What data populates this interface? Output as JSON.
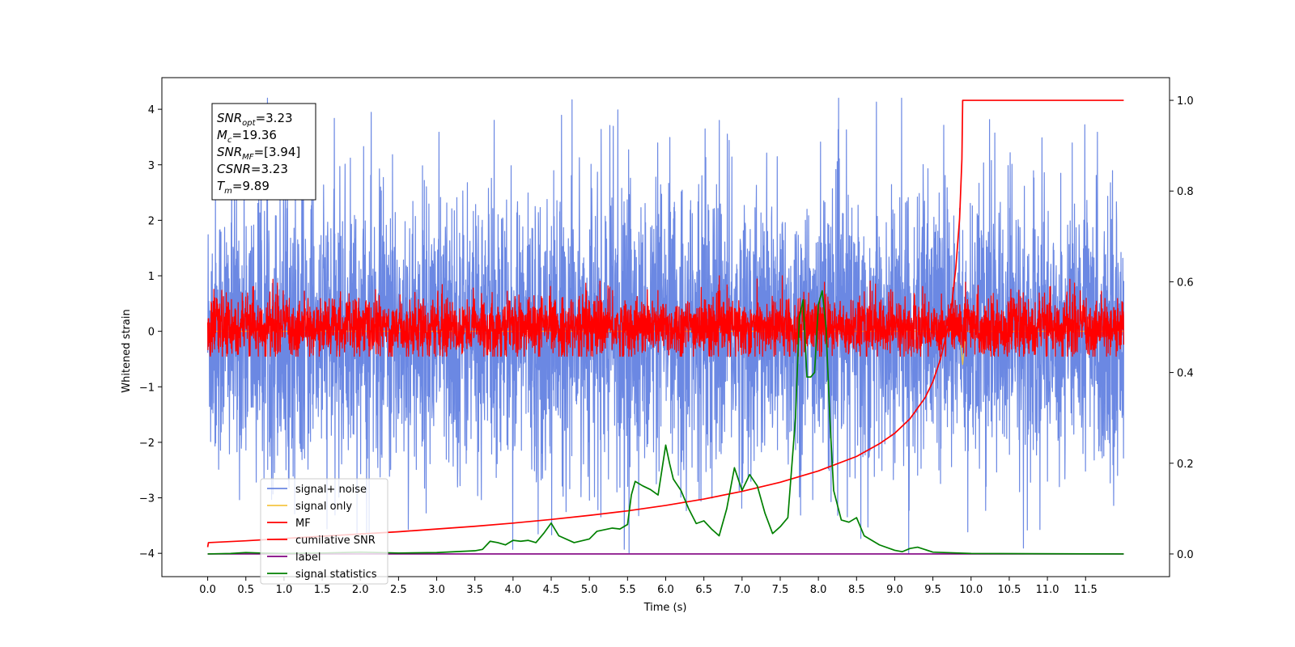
{
  "chart_data": {
    "type": "line",
    "xlabel": "Time (s)",
    "ylabel": "Whitened strain",
    "xlim": [
      -0.6,
      12.6
    ],
    "ylim": [
      -4.42,
      4.57
    ],
    "y2lim": [
      -0.05,
      1.05
    ],
    "x_ticks": [
      0.0,
      0.5,
      1.0,
      1.5,
      2.0,
      2.5,
      3.0,
      3.5,
      4.0,
      4.5,
      5.0,
      5.5,
      6.0,
      6.5,
      7.0,
      7.5,
      8.0,
      8.5,
      9.0,
      9.5,
      10.0,
      10.5,
      11.0,
      11.5
    ],
    "y_ticks": [
      -4,
      -3,
      -2,
      -1,
      0,
      1,
      2,
      3,
      4
    ],
    "y2_ticks": [
      0.0,
      0.2,
      0.4,
      0.6,
      0.8,
      1.0
    ],
    "legend_placement": "lower-left",
    "annotation": {
      "lines": [
        {
          "main": "SNR",
          "sub": "opt",
          "rest": "=3.23"
        },
        {
          "main": "M",
          "sub": "c",
          "rest": "=19.36"
        },
        {
          "main": "SNR",
          "sub": "MF",
          "rest": "=[3.94]"
        },
        {
          "main": "CSNR",
          "sub": "",
          "rest": "=3.23"
        },
        {
          "main": "T",
          "sub": "m",
          "rest": "=9.89"
        }
      ]
    },
    "series": [
      {
        "name": "signal+ noise",
        "color": "#6b88e3",
        "axis": "left",
        "kind": "noise",
        "x_range": [
          0.0,
          12.0
        ],
        "mean": 0.0,
        "envelope": [
          -2.5,
          2.5
        ],
        "extremes": [
          -4.0,
          4.2
        ]
      },
      {
        "name": "signal only",
        "color": "#f5c542",
        "axis": "left",
        "kind": "line",
        "x": [
          0.0,
          9.85,
          9.89,
          9.93,
          12.0
        ],
        "y": [
          0.0,
          0.0,
          -0.6,
          0.0,
          0.0
        ]
      },
      {
        "name": "MF",
        "color": "#ff0000",
        "axis": "left",
        "kind": "noise",
        "x_range": [
          0.0,
          12.0
        ],
        "mean": 0.0,
        "envelope": [
          -0.45,
          0.6
        ],
        "extremes": [
          -0.45,
          1.0
        ]
      },
      {
        "name": "cumilative SNR",
        "color": "#ff0000",
        "axis": "right",
        "kind": "line",
        "x": [
          0.0,
          0.01,
          0.5,
          1.0,
          1.5,
          2.0,
          2.5,
          3.0,
          3.5,
          4.0,
          4.5,
          5.0,
          5.5,
          6.0,
          6.5,
          7.0,
          7.5,
          8.0,
          8.5,
          8.8,
          9.0,
          9.2,
          9.4,
          9.5,
          9.6,
          9.7,
          9.75,
          9.8,
          9.85,
          9.88,
          9.89,
          12.0
        ],
        "y": [
          0.015,
          0.025,
          0.029,
          0.034,
          0.039,
          0.044,
          0.049,
          0.055,
          0.061,
          0.068,
          0.076,
          0.085,
          0.095,
          0.107,
          0.121,
          0.138,
          0.158,
          0.183,
          0.215,
          0.243,
          0.266,
          0.298,
          0.345,
          0.38,
          0.43,
          0.5,
          0.555,
          0.63,
          0.74,
          0.87,
          1.0,
          1.0
        ]
      },
      {
        "name": "label",
        "color": "#800080",
        "axis": "right",
        "kind": "line",
        "x": [
          0.0,
          12.0
        ],
        "y": [
          0.0,
          0.0
        ]
      },
      {
        "name": "signal statistics",
        "color": "#008000",
        "axis": "right",
        "kind": "line",
        "x": [
          0.0,
          0.3,
          0.5,
          0.7,
          1.0,
          1.5,
          2.0,
          2.5,
          3.0,
          3.5,
          3.6,
          3.7,
          3.8,
          3.9,
          4.0,
          4.1,
          4.2,
          4.3,
          4.4,
          4.5,
          4.6,
          4.8,
          5.0,
          5.1,
          5.3,
          5.4,
          5.5,
          5.55,
          5.6,
          5.7,
          5.8,
          5.9,
          6.0,
          6.05,
          6.1,
          6.2,
          6.3,
          6.4,
          6.5,
          6.6,
          6.7,
          6.8,
          6.9,
          7.0,
          7.1,
          7.2,
          7.3,
          7.4,
          7.5,
          7.6,
          7.7,
          7.75,
          7.8,
          7.85,
          7.9,
          7.95,
          8.0,
          8.05,
          8.1,
          8.15,
          8.2,
          8.3,
          8.4,
          8.5,
          8.6,
          8.7,
          8.8,
          9.0,
          9.1,
          9.2,
          9.3,
          9.5,
          10.0,
          12.0
        ],
        "y": [
          0.0,
          0.001,
          0.003,
          0.002,
          0.001,
          0.002,
          0.004,
          0.002,
          0.003,
          0.007,
          0.01,
          0.028,
          0.025,
          0.02,
          0.03,
          0.028,
          0.03,
          0.025,
          0.045,
          0.068,
          0.04,
          0.025,
          0.033,
          0.05,
          0.057,
          0.055,
          0.065,
          0.13,
          0.16,
          0.15,
          0.142,
          0.13,
          0.24,
          0.2,
          0.165,
          0.14,
          0.1,
          0.067,
          0.073,
          0.055,
          0.04,
          0.1,
          0.19,
          0.14,
          0.175,
          0.15,
          0.09,
          0.045,
          0.06,
          0.08,
          0.3,
          0.52,
          0.56,
          0.39,
          0.39,
          0.4,
          0.55,
          0.58,
          0.5,
          0.3,
          0.14,
          0.075,
          0.07,
          0.08,
          0.04,
          0.03,
          0.02,
          0.008,
          0.005,
          0.012,
          0.015,
          0.004,
          0.001,
          0.0
        ]
      }
    ]
  }
}
